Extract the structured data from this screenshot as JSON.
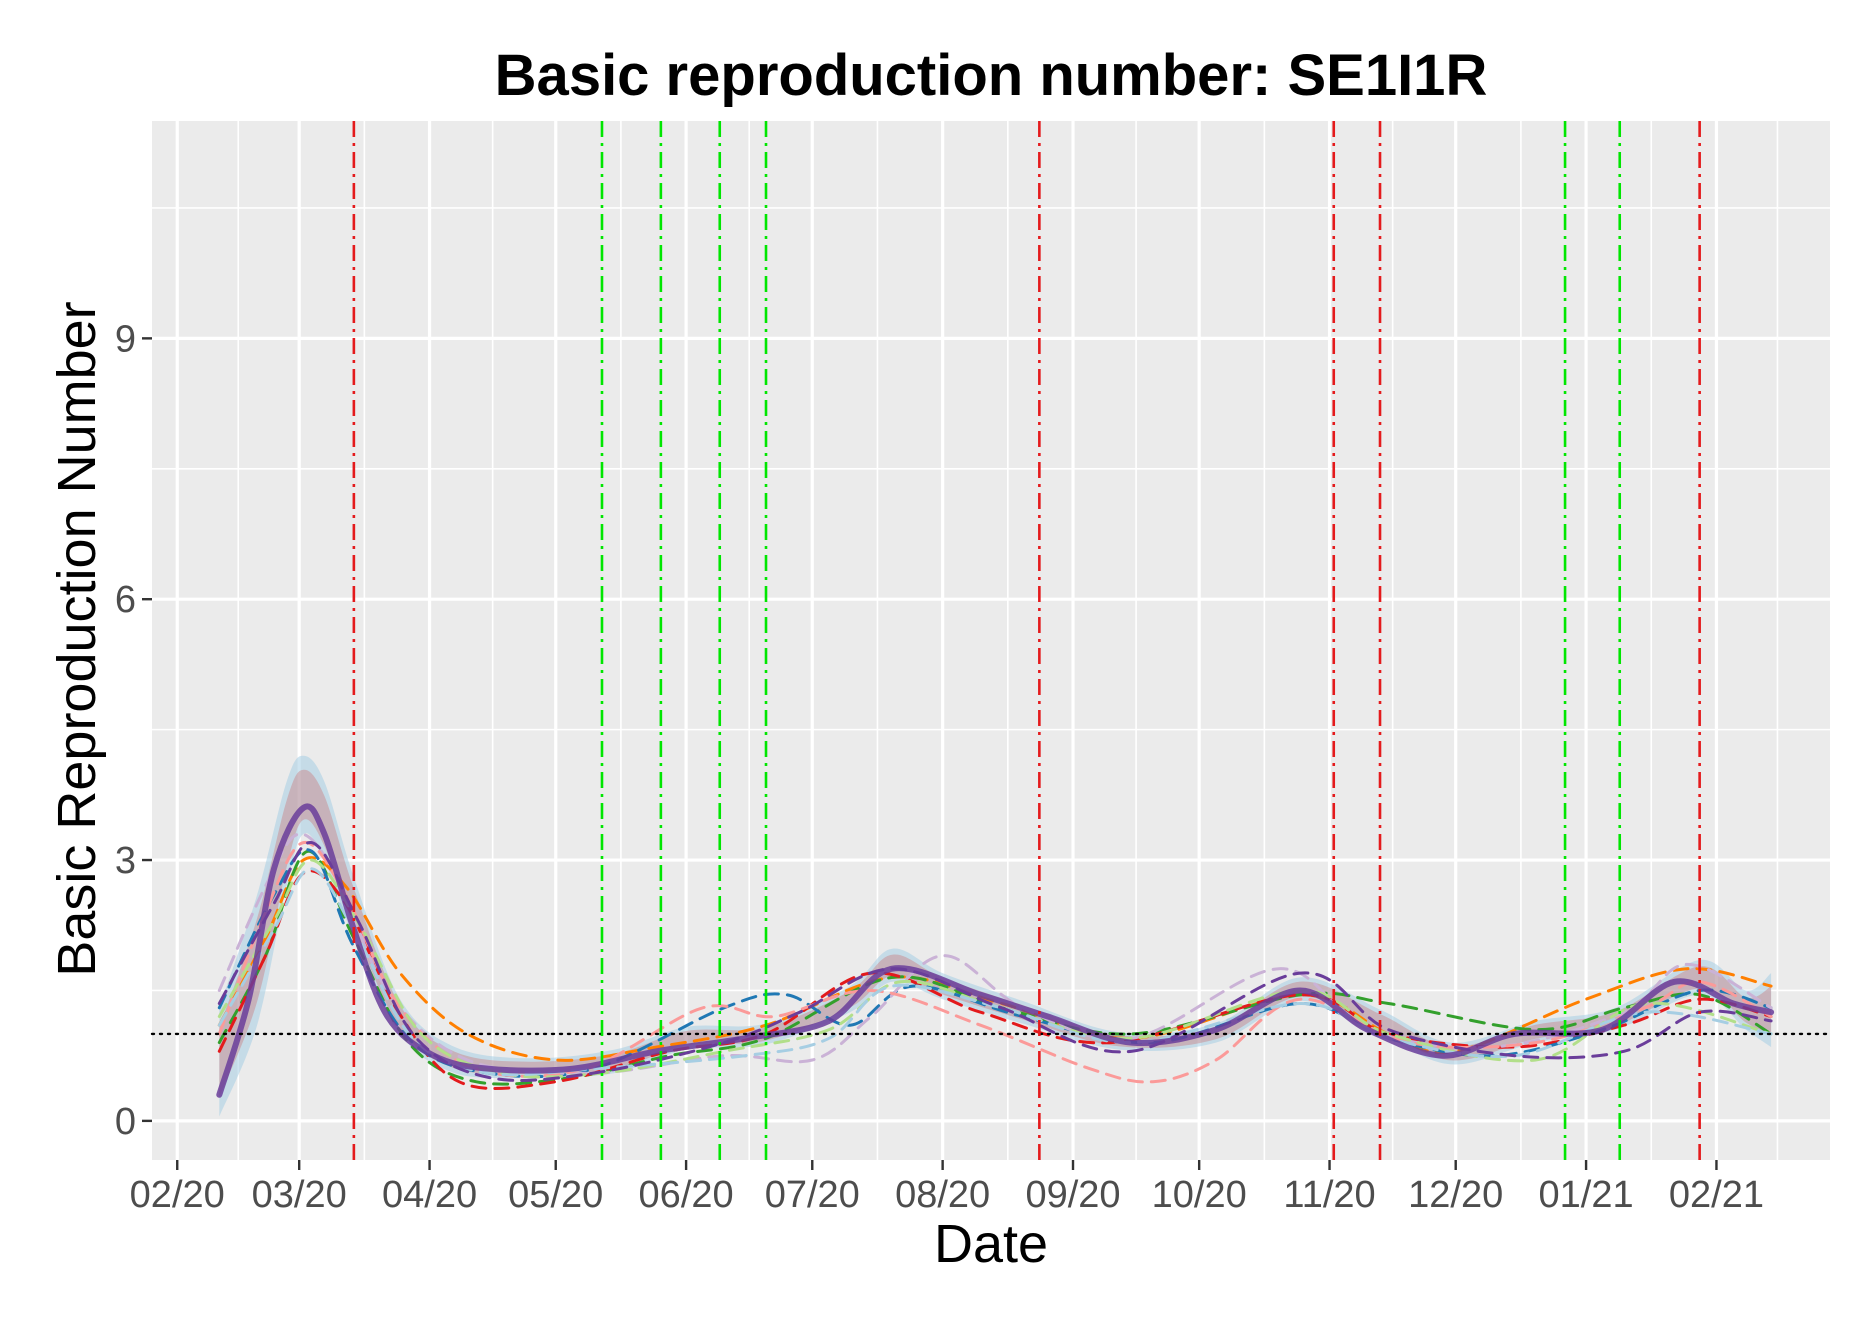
{
  "chart_data": {
    "type": "line",
    "title": "Basic reproduction number: SE1I1R",
    "xlabel": "Date",
    "ylabel": "Basic Reproduction Number",
    "x_axis": {
      "kind": "date",
      "range": [
        "2020-01-26",
        "2021-02-28"
      ],
      "ticks": [
        {
          "label": "02/20",
          "date": "2020-02-01"
        },
        {
          "label": "03/20",
          "date": "2020-03-01"
        },
        {
          "label": "04/20",
          "date": "2020-04-01"
        },
        {
          "label": "05/20",
          "date": "2020-05-01"
        },
        {
          "label": "06/20",
          "date": "2020-06-01"
        },
        {
          "label": "07/20",
          "date": "2020-07-01"
        },
        {
          "label": "08/20",
          "date": "2020-08-01"
        },
        {
          "label": "09/20",
          "date": "2020-09-01"
        },
        {
          "label": "10/20",
          "date": "2020-10-01"
        },
        {
          "label": "11/20",
          "date": "2020-11-01"
        },
        {
          "label": "12/20",
          "date": "2020-12-01"
        },
        {
          "label": "01/21",
          "date": "2021-01-01"
        },
        {
          "label": "02/21",
          "date": "2021-02-01"
        }
      ]
    },
    "y_axis": {
      "range": [
        -0.45,
        11.5
      ],
      "ticks": [
        0,
        3,
        6,
        9
      ],
      "tick_labels": [
        "0",
        "3",
        "6",
        "9"
      ]
    },
    "grid": true,
    "panel_background": "#ebebeb",
    "reference_line": {
      "y": 1,
      "style": "dotted",
      "color": "#000000"
    },
    "vlines": [
      {
        "date": "2020-03-14",
        "color": "#e41a1c",
        "style": "dashdot"
      },
      {
        "date": "2020-05-12",
        "color": "#00e600",
        "style": "dashdot"
      },
      {
        "date": "2020-05-26",
        "color": "#00e600",
        "style": "dashdot"
      },
      {
        "date": "2020-06-09",
        "color": "#00e600",
        "style": "dashdot"
      },
      {
        "date": "2020-06-20",
        "color": "#00e600",
        "style": "dashdot"
      },
      {
        "date": "2020-08-24",
        "color": "#e41a1c",
        "style": "dashdot"
      },
      {
        "date": "2020-11-02",
        "color": "#e41a1c",
        "style": "dashdot"
      },
      {
        "date": "2020-11-13",
        "color": "#e41a1c",
        "style": "dashdot"
      },
      {
        "date": "2020-12-27",
        "color": "#00e600",
        "style": "dashdot"
      },
      {
        "date": "2021-01-09",
        "color": "#00e600",
        "style": "dashdot"
      },
      {
        "date": "2021-01-28",
        "color": "#e41a1c",
        "style": "dashdot"
      }
    ],
    "ribbon": {
      "color": "#a6cee3",
      "inner_color": "#cc6666",
      "points": [
        {
          "x": "2020-02-11",
          "lo": 0.05,
          "hi": 1.3
        },
        {
          "x": "2020-02-20",
          "lo": 1.1,
          "hi": 2.6
        },
        {
          "x": "2020-02-27",
          "lo": 2.7,
          "hi": 3.9
        },
        {
          "x": "2020-03-02",
          "lo": 3.3,
          "hi": 4.2
        },
        {
          "x": "2020-03-07",
          "lo": 3.0,
          "hi": 3.9
        },
        {
          "x": "2020-03-14",
          "lo": 2.1,
          "hi": 2.8
        },
        {
          "x": "2020-03-25",
          "lo": 1.0,
          "hi": 1.4
        },
        {
          "x": "2020-04-07",
          "lo": 0.55,
          "hi": 0.85
        },
        {
          "x": "2020-04-25",
          "lo": 0.5,
          "hi": 0.72
        },
        {
          "x": "2020-05-15",
          "lo": 0.55,
          "hi": 0.82
        },
        {
          "x": "2020-06-01",
          "lo": 0.82,
          "hi": 1.08
        },
        {
          "x": "2020-06-20",
          "lo": 0.88,
          "hi": 1.12
        },
        {
          "x": "2020-07-10",
          "lo": 1.25,
          "hi": 1.55
        },
        {
          "x": "2020-07-20",
          "lo": 1.6,
          "hi": 1.98
        },
        {
          "x": "2020-08-01",
          "lo": 1.4,
          "hi": 1.7
        },
        {
          "x": "2020-08-20",
          "lo": 1.12,
          "hi": 1.38
        },
        {
          "x": "2020-09-12",
          "lo": 0.82,
          "hi": 1.02
        },
        {
          "x": "2020-10-05",
          "lo": 0.9,
          "hi": 1.12
        },
        {
          "x": "2020-10-25",
          "lo": 1.38,
          "hi": 1.65
        },
        {
          "x": "2020-11-13",
          "lo": 1.0,
          "hi": 1.28
        },
        {
          "x": "2020-11-30",
          "lo": 0.65,
          "hi": 0.9
        },
        {
          "x": "2020-12-20",
          "lo": 0.9,
          "hi": 1.15
        },
        {
          "x": "2021-01-08",
          "lo": 1.05,
          "hi": 1.3
        },
        {
          "x": "2021-01-28",
          "lo": 1.45,
          "hi": 1.85
        },
        {
          "x": "2021-02-08",
          "lo": 1.05,
          "hi": 1.5
        },
        {
          "x": "2021-02-14",
          "lo": 0.85,
          "hi": 1.7
        }
      ]
    },
    "series": [
      {
        "color": "#6a3d9a",
        "style": "solid",
        "width": 6,
        "x": [
          "2020-02-11",
          "2020-02-18",
          "2020-02-24",
          "2020-03-02",
          "2020-03-07",
          "2020-03-14",
          "2020-03-22",
          "2020-04-02",
          "2020-04-15",
          "2020-05-05",
          "2020-05-25",
          "2020-06-15",
          "2020-07-05",
          "2020-07-20",
          "2020-08-10",
          "2020-08-26",
          "2020-09-15",
          "2020-10-05",
          "2020-10-25",
          "2020-11-10",
          "2020-11-28",
          "2020-12-15",
          "2021-01-05",
          "2021-01-22",
          "2021-02-05",
          "2021-02-14"
        ],
        "values": [
          0.3,
          1.4,
          2.9,
          3.6,
          3.3,
          2.2,
          1.2,
          0.75,
          0.6,
          0.6,
          0.8,
          0.95,
          1.15,
          1.75,
          1.45,
          1.2,
          0.9,
          1.05,
          1.5,
          1.05,
          0.75,
          1.0,
          1.05,
          1.6,
          1.35,
          1.25
        ]
      },
      {
        "color": "#ff7f00",
        "style": "dashed",
        "width": 3,
        "x": [
          "2020-02-11",
          "2020-02-22",
          "2020-03-02",
          "2020-03-12",
          "2020-03-25",
          "2020-04-10",
          "2020-05-01",
          "2020-05-25",
          "2020-06-20",
          "2020-07-20",
          "2020-08-15",
          "2020-09-15",
          "2020-10-25",
          "2020-11-15",
          "2020-12-01",
          "2021-01-01",
          "2021-01-25",
          "2021-02-14"
        ],
        "values": [
          1.1,
          2.1,
          3.0,
          2.7,
          1.7,
          1.0,
          0.7,
          0.85,
          1.1,
          1.65,
          1.35,
          0.95,
          1.45,
          1.0,
          0.8,
          1.4,
          1.75,
          1.55
        ]
      },
      {
        "color": "#33a02c",
        "style": "dashed",
        "width": 3,
        "x": [
          "2020-02-11",
          "2020-02-22",
          "2020-03-03",
          "2020-03-14",
          "2020-03-27",
          "2020-04-12",
          "2020-05-05",
          "2020-05-28",
          "2020-06-20",
          "2020-07-20",
          "2020-08-15",
          "2020-09-15",
          "2020-10-25",
          "2020-11-15",
          "2020-12-20",
          "2021-01-10",
          "2021-01-28",
          "2021-02-14"
        ],
        "values": [
          0.9,
          1.9,
          3.1,
          2.1,
          0.9,
          0.45,
          0.5,
          0.75,
          0.95,
          1.65,
          1.3,
          1.0,
          1.45,
          1.35,
          1.05,
          1.3,
          1.45,
          1.0
        ]
      },
      {
        "color": "#e31a1c",
        "style": "dashed",
        "width": 3,
        "x": [
          "2020-02-11",
          "2020-02-22",
          "2020-03-02",
          "2020-03-12",
          "2020-03-24",
          "2020-04-08",
          "2020-05-01",
          "2020-05-28",
          "2020-06-20",
          "2020-07-15",
          "2020-08-10",
          "2020-09-10",
          "2020-10-25",
          "2020-11-15",
          "2020-12-15",
          "2021-01-10",
          "2021-01-28",
          "2021-02-14"
        ],
        "values": [
          0.8,
          1.9,
          2.85,
          2.5,
          1.3,
          0.45,
          0.45,
          0.8,
          1.0,
          1.7,
          1.25,
          0.9,
          1.45,
          1.0,
          0.85,
          1.1,
          1.4,
          1.2
        ]
      },
      {
        "color": "#1f78b4",
        "style": "dashed",
        "width": 3,
        "x": [
          "2020-02-11",
          "2020-02-24",
          "2020-03-04",
          "2020-03-14",
          "2020-03-28",
          "2020-04-15",
          "2020-05-10",
          "2020-06-10",
          "2020-06-25",
          "2020-07-10",
          "2020-07-25",
          "2020-08-20",
          "2020-09-20",
          "2020-10-25",
          "2020-11-15",
          "2020-12-10",
          "2021-01-05",
          "2021-01-28",
          "2021-02-14"
        ],
        "values": [
          1.3,
          2.6,
          3.1,
          2.0,
          0.9,
          0.55,
          0.6,
          1.3,
          1.45,
          1.1,
          1.55,
          1.2,
          0.9,
          1.35,
          0.95,
          0.75,
          1.05,
          1.5,
          1.3
        ]
      },
      {
        "color": "#cab2d6",
        "style": "dashed",
        "width": 3,
        "x": [
          "2020-02-11",
          "2020-02-22",
          "2020-03-01",
          "2020-03-10",
          "2020-03-22",
          "2020-04-10",
          "2020-05-10",
          "2020-06-10",
          "2020-07-01",
          "2020-07-15",
          "2020-08-01",
          "2020-08-20",
          "2020-09-15",
          "2020-10-20",
          "2020-11-10",
          "2020-12-10",
          "2021-01-10",
          "2021-01-25",
          "2021-02-14"
        ],
        "values": [
          1.5,
          2.7,
          3.3,
          2.8,
          1.5,
          0.7,
          0.55,
          0.75,
          0.7,
          1.2,
          1.9,
          1.3,
          0.95,
          1.75,
          1.05,
          0.85,
          1.25,
          1.8,
          1.3
        ]
      },
      {
        "color": "#fb9a99",
        "style": "dashed",
        "width": 3,
        "x": [
          "2020-02-11",
          "2020-02-22",
          "2020-03-02",
          "2020-03-12",
          "2020-03-25",
          "2020-04-12",
          "2020-05-08",
          "2020-06-05",
          "2020-06-22",
          "2020-07-15",
          "2020-08-10",
          "2020-09-05",
          "2020-09-20",
          "2020-10-05",
          "2020-10-25",
          "2020-11-20",
          "2020-12-20",
          "2021-01-15",
          "2021-01-28",
          "2021-02-14"
        ],
        "values": [
          1.0,
          2.4,
          3.2,
          2.6,
          1.3,
          0.6,
          0.6,
          1.3,
          1.2,
          1.5,
          1.1,
          0.6,
          0.45,
          0.7,
          1.4,
          0.9,
          0.9,
          1.3,
          1.6,
          1.2
        ]
      },
      {
        "color": "#b2df8a",
        "style": "dashed",
        "width": 3,
        "x": [
          "2020-02-11",
          "2020-02-24",
          "2020-03-04",
          "2020-03-16",
          "2020-03-30",
          "2020-04-18",
          "2020-05-12",
          "2020-06-10",
          "2020-07-05",
          "2020-07-22",
          "2020-08-15",
          "2020-09-15",
          "2020-10-25",
          "2020-11-15",
          "2020-12-20",
          "2021-01-15",
          "2021-02-14"
        ],
        "values": [
          1.2,
          2.3,
          3.0,
          2.2,
          1.0,
          0.55,
          0.55,
          0.8,
          1.05,
          1.6,
          1.3,
          0.95,
          1.5,
          1.0,
          0.7,
          1.35,
          1.0
        ]
      },
      {
        "color": "#a6cee3",
        "style": "dashed",
        "width": 3,
        "x": [
          "2020-02-11",
          "2020-02-24",
          "2020-03-04",
          "2020-03-15",
          "2020-03-28",
          "2020-04-15",
          "2020-05-10",
          "2020-06-15",
          "2020-07-05",
          "2020-07-20",
          "2020-08-15",
          "2020-09-15",
          "2020-10-25",
          "2020-11-15",
          "2020-12-15",
          "2021-01-15",
          "2021-02-14"
        ],
        "values": [
          1.1,
          2.2,
          2.9,
          2.1,
          0.95,
          0.55,
          0.6,
          0.75,
          0.95,
          1.55,
          1.3,
          0.9,
          1.35,
          0.95,
          0.75,
          1.25,
          1.0
        ]
      },
      {
        "color": "#6a3d9a",
        "style": "dashed",
        "width": 3,
        "x": [
          "2020-02-11",
          "2020-02-24",
          "2020-03-04",
          "2020-03-15",
          "2020-03-28",
          "2020-04-15",
          "2020-05-10",
          "2020-06-10",
          "2020-06-28",
          "2020-07-20",
          "2020-08-15",
          "2020-09-15",
          "2020-10-25",
          "2020-11-15",
          "2020-12-15",
          "2021-01-10",
          "2021-01-28",
          "2021-02-14"
        ],
        "values": [
          1.35,
          2.5,
          3.2,
          2.3,
          1.0,
          0.5,
          0.55,
          0.9,
          1.25,
          1.75,
          1.3,
          0.8,
          1.7,
          1.05,
          0.75,
          0.8,
          1.25,
          1.15
        ]
      }
    ]
  }
}
